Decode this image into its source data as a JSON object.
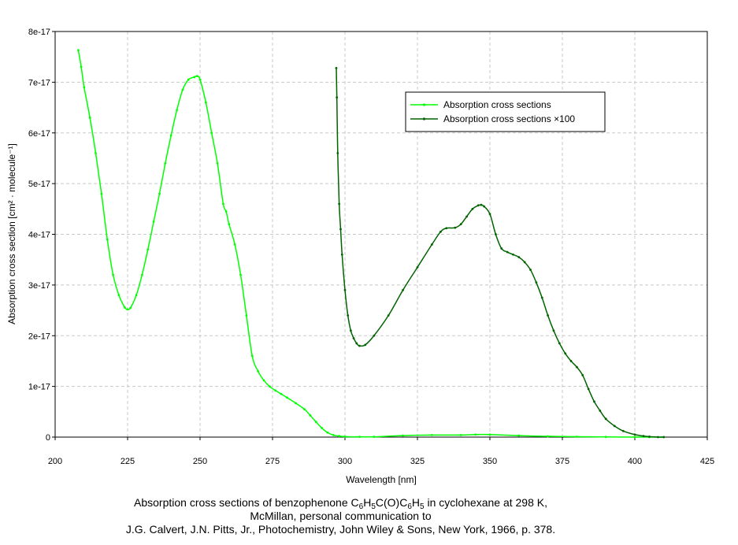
{
  "chart_data": {
    "type": "line",
    "xlabel": "Wavelength [nm]",
    "ylabel": "Absorption cross section [cm² · molecule⁻¹]",
    "xlim": [
      200,
      425
    ],
    "ylim": [
      0,
      8e-17
    ],
    "x_ticks": [
      "200",
      "225",
      "250",
      "275",
      "300",
      "325",
      "350",
      "375",
      "400",
      "425"
    ],
    "y_ticks": [
      "0",
      "1e-17",
      "2e-17",
      "3e-17",
      "4e-17",
      "5e-17",
      "6e-17",
      "7e-17",
      "8e-17"
    ],
    "grid": true,
    "legend_position": "top-right",
    "series": [
      {
        "name": "Absorption cross sections",
        "color": "#00ff00",
        "x": [
          208,
          209,
          210,
          212,
          214,
          216,
          218,
          220,
          222,
          224,
          225,
          226,
          228,
          230,
          232,
          234,
          236,
          238,
          240,
          242,
          244,
          246,
          248,
          249,
          250,
          252,
          254,
          256,
          258,
          259,
          260,
          262,
          264,
          266,
          268,
          270,
          272,
          274,
          276,
          278,
          280,
          283,
          286,
          288,
          290,
          292,
          294,
          296,
          298,
          300,
          305,
          310,
          320,
          330,
          340,
          345,
          350,
          360,
          370,
          380,
          390,
          400,
          405,
          410
        ],
        "y": [
          7.63e-17,
          7.3e-17,
          6.9e-17,
          6.3e-17,
          5.6e-17,
          4.8e-17,
          3.9e-17,
          3.2e-17,
          2.8e-17,
          2.56e-17,
          2.52e-17,
          2.55e-17,
          2.8e-17,
          3.2e-17,
          3.7e-17,
          4.25e-17,
          4.8e-17,
          5.4e-17,
          5.95e-17,
          6.45e-17,
          6.85e-17,
          7.05e-17,
          7.1e-17,
          7.12e-17,
          7.05e-17,
          6.6e-17,
          6e-17,
          5.4e-17,
          4.6e-17,
          4.45e-17,
          4.2e-17,
          3.8e-17,
          3.2e-17,
          2.4e-17,
          1.6e-17,
          1.3e-17,
          1.12e-17,
          1e-17,
          9.2e-18,
          8.5e-18,
          7.8e-18,
          6.7e-18,
          5.5e-18,
          4.3e-18,
          3e-18,
          1.8e-18,
          9e-19,
          4e-19,
          2e-19,
          1e-19,
          5e-20,
          5e-20,
          3e-19,
          4e-19,
          4e-19,
          5e-19,
          5e-19,
          3e-19,
          1.5e-19,
          8e-20,
          3e-20,
          1e-20,
          0,
          0
        ]
      },
      {
        "name": "Absorption cross sections ×100",
        "color": "#006400",
        "x": [
          297,
          297.2,
          297.5,
          298,
          298.5,
          299,
          300,
          301,
          302,
          303,
          304,
          305,
          307,
          310,
          315,
          320,
          325,
          330,
          333,
          335,
          338,
          340,
          342,
          344,
          346,
          347,
          348,
          350,
          352,
          354,
          356,
          358,
          360,
          362,
          364,
          366,
          368,
          370,
          372,
          374,
          376,
          378,
          380,
          382,
          384,
          386,
          388,
          390,
          393,
          396,
          400,
          403,
          405,
          408,
          410
        ],
        "y": [
          7.28e-17,
          6.7e-17,
          5.6e-17,
          4.6e-17,
          4.1e-17,
          3.6e-17,
          2.9e-17,
          2.4e-17,
          2.1e-17,
          1.95e-17,
          1.85e-17,
          1.8e-17,
          1.82e-17,
          2e-17,
          2.4e-17,
          2.9e-17,
          3.35e-17,
          3.8e-17,
          4.05e-17,
          4.12e-17,
          4.13e-17,
          4.2e-17,
          4.35e-17,
          4.5e-17,
          4.57e-17,
          4.58e-17,
          4.55e-17,
          4.4e-17,
          4e-17,
          3.72e-17,
          3.65e-17,
          3.6e-17,
          3.55e-17,
          3.45e-17,
          3.3e-17,
          3.05e-17,
          2.75e-17,
          2.4e-17,
          2.1e-17,
          1.85e-17,
          1.65e-17,
          1.5e-17,
          1.38e-17,
          1.22e-17,
          9.5e-18,
          7e-18,
          5.2e-18,
          3.6e-18,
          2.2e-18,
          1.2e-18,
          5e-19,
          2e-19,
          1e-19,
          0,
          0
        ]
      }
    ],
    "caption_lines": [
      [
        "Absorption cross sections of benzophenone C",
        "6",
        "H",
        "5",
        "C(O)C",
        "6",
        "H",
        "5",
        " in cyclohexane at 298 K,"
      ],
      [
        "McMillan, personal communication to"
      ],
      [
        "J.G. Calvert, J.N. Pitts, Jr., Photochemistry, John Wiley & Sons, New York, 1966, p. 378."
      ]
    ]
  }
}
